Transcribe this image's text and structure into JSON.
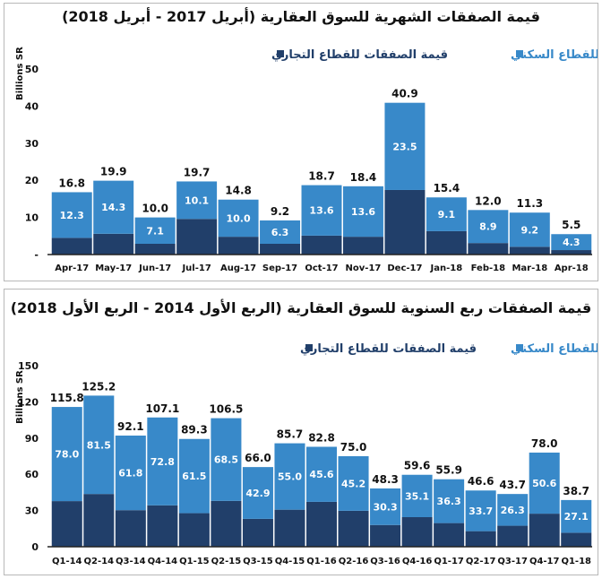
{
  "colors": {
    "residential": "#3889c9",
    "commercial": "#213f6a",
    "axis": "#222222"
  },
  "chart_data": [
    {
      "type": "bar",
      "stacked": true,
      "title": "قيمة الصفقات الشهرية للسوق العقارية (أبريل 2017 - أبريل 2018)",
      "ylabel": "Billions SR",
      "ylim": [
        0,
        50
      ],
      "yticks": [
        0,
        10,
        20,
        30,
        40,
        50
      ],
      "ytick_labels": [
        "-",
        "10",
        "20",
        "30",
        "40",
        "50"
      ],
      "legend": {
        "residential": "قيمة الصفقات للقطاع السكني",
        "commercial": "قيمة الصفقات للقطاع التجاري"
      },
      "categories": [
        "Apr-17",
        "May-17",
        "Jun-17",
        "Jul-17",
        "Aug-17",
        "Sep-17",
        "Oct-17",
        "Nov-17",
        "Dec-17",
        "Jan-18",
        "Feb-18",
        "Mar-18",
        "Apr-18"
      ],
      "totals": [
        "16.8",
        "19.9",
        "10.0",
        "19.7",
        "14.8",
        "9.2",
        "18.7",
        "18.4",
        "40.9",
        "15.4",
        "12.0",
        "11.3",
        "5.5"
      ],
      "residential": [
        "12.3",
        "14.3",
        "7.1",
        "10.1",
        "10.0",
        "6.3",
        "13.6",
        "13.6",
        "23.5",
        "9.1",
        "8.9",
        "9.2",
        "4.3"
      ]
    },
    {
      "type": "bar",
      "stacked": true,
      "title": "قيمة الصفقات ربع السنوية للسوق العقارية (الربع الأول 2014 - الربع الأول 2018)",
      "ylabel": "Billions SR",
      "ylim": [
        0,
        150
      ],
      "yticks": [
        0,
        30,
        60,
        90,
        120,
        150
      ],
      "ytick_labels": [
        "0",
        "30",
        "60",
        "90",
        "120",
        "150"
      ],
      "legend": {
        "residential": "قيمة الصفقات للقطاع السكني",
        "commercial": "قيمة الصفقات للقطاع التجاري"
      },
      "categories": [
        "Q1-14",
        "Q2-14",
        "Q3-14",
        "Q4-14",
        "Q1-15",
        "Q2-15",
        "Q3-15",
        "Q4-15",
        "Q1-16",
        "Q2-16",
        "Q3-16",
        "Q4-16",
        "Q1-17",
        "Q2-17",
        "Q3-17",
        "Q4-17",
        "Q1-18"
      ],
      "totals": [
        "115.8",
        "125.2",
        "92.1",
        "107.1",
        "89.3",
        "106.5",
        "66.0",
        "85.7",
        "82.8",
        "75.0",
        "48.3",
        "59.6",
        "55.9",
        "46.6",
        "43.7",
        "78.0",
        "38.7"
      ],
      "residential": [
        "78.0",
        "81.5",
        "61.8",
        "72.8",
        "61.5",
        "68.5",
        "42.9",
        "55.0",
        "45.6",
        "45.2",
        "30.3",
        "35.1",
        "36.3",
        "33.7",
        "26.3",
        "50.6",
        "27.1"
      ]
    }
  ]
}
